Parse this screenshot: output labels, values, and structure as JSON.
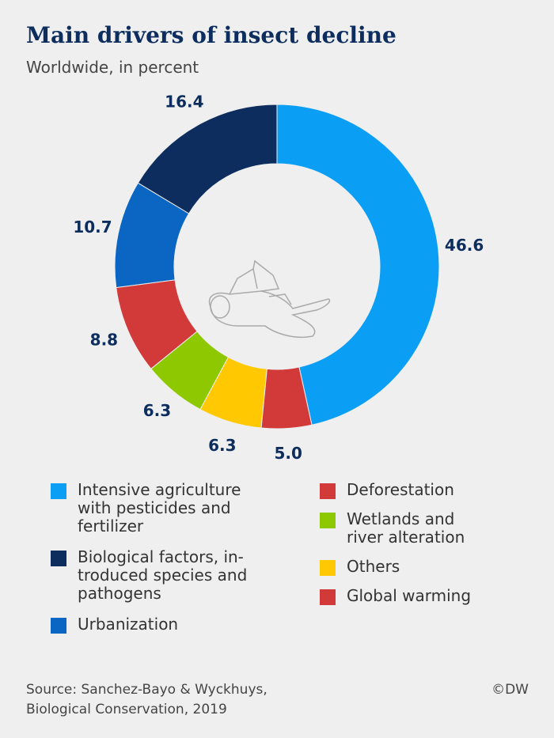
{
  "chart_data": {
    "type": "donut",
    "title": "Main drivers of insect decline",
    "subtitle": "Worldwide, in percent",
    "categories": [
      "Intensive agriculture\nwith pesticides and\nfertilizer",
      "Biological factors, in-\ntroduced species and\npathogens",
      "Urbanization",
      "Deforestation",
      "Wetlands and\nriver alteration",
      "Others",
      "Global warming"
    ],
    "values": [
      46.6,
      16.4,
      10.7,
      8.8,
      6.3,
      6.3,
      5.0
    ],
    "value_labels": [
      "46.6",
      "16.4",
      "10.7",
      "8.8",
      "6.3",
      "6.3",
      "5.0"
    ],
    "colors": [
      "#0a9ef5",
      "#0c2d5e",
      "#0a66c2",
      "#d23a3a",
      "#8dc800",
      "#ffc800",
      "#d23a3a"
    ],
    "source": [
      "Source: Sanchez-Bayo & Wyckhuys,",
      "Biological Conservation, 2019"
    ],
    "credit": "©DW"
  }
}
